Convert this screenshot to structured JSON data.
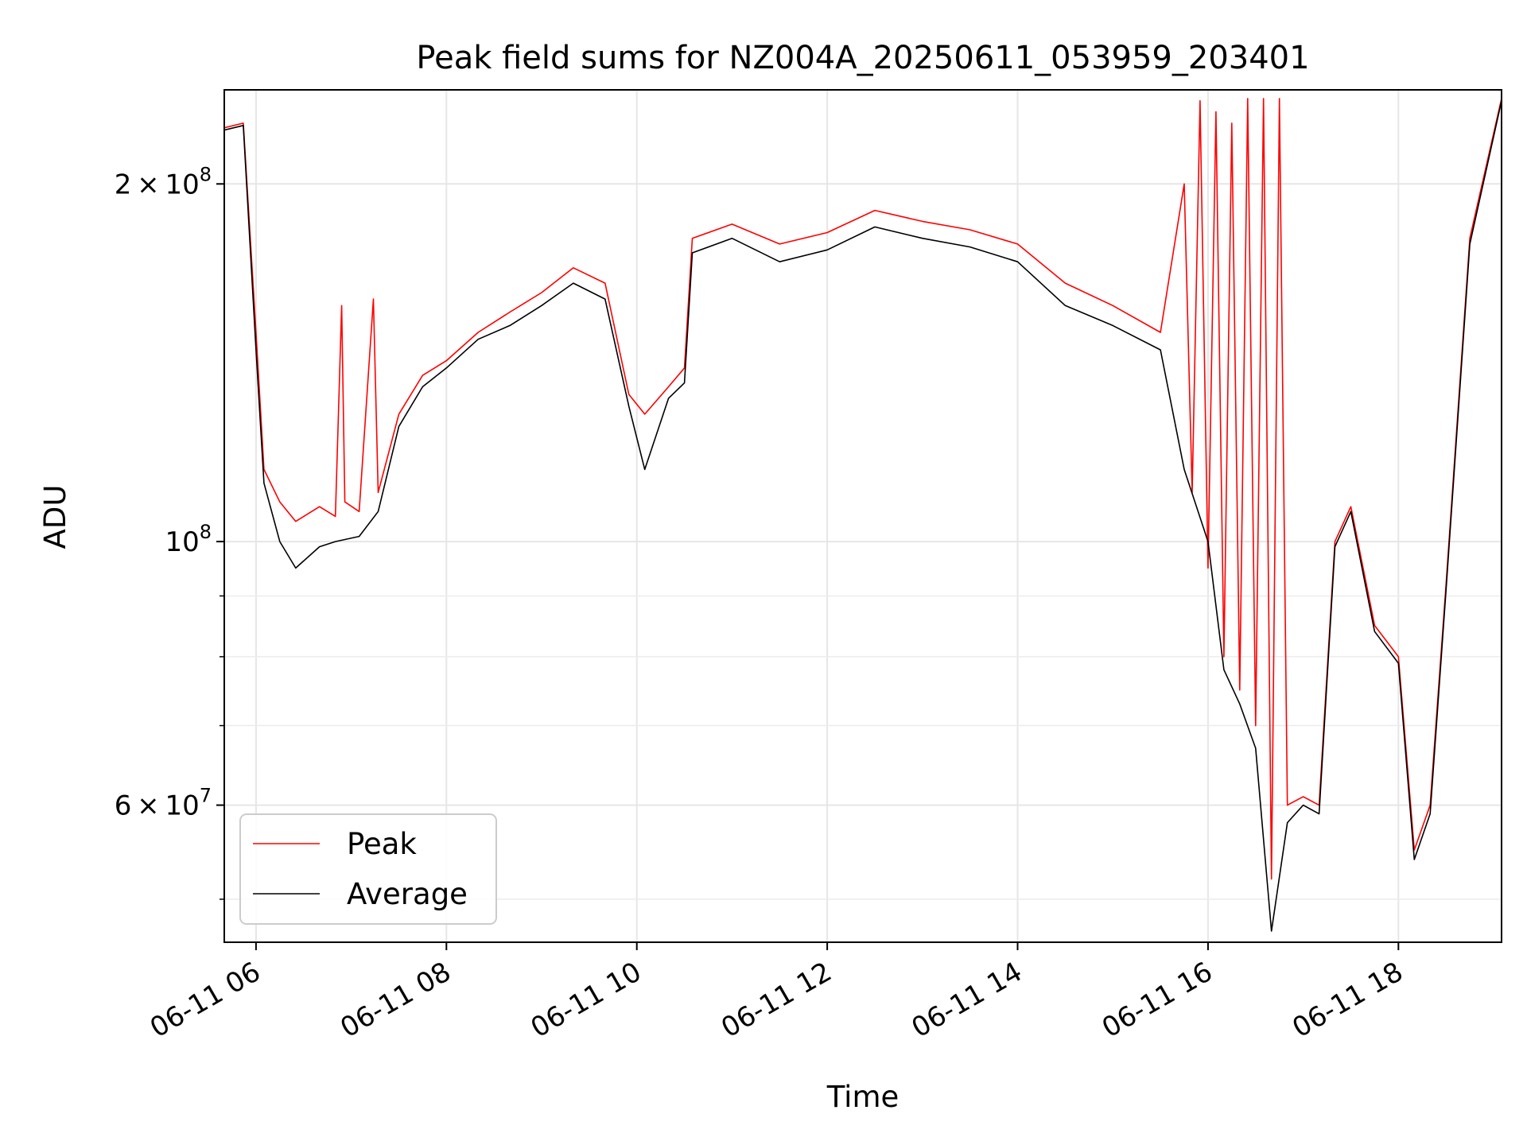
{
  "chart_data": {
    "type": "line",
    "title": "Peak field sums for NZ004A_20250611_053959_203401",
    "xlabel": "Time",
    "ylabel": "ADU",
    "y_scale": "log",
    "grid": true,
    "legend_position": "lower-left",
    "x_time_range": [
      "2025-06-11 05:40",
      "2025-06-11 19:05"
    ],
    "ylim": [
      46000000,
      240000000
    ],
    "x_ticks": [
      {
        "time": "2025-06-11 06:00",
        "label": "06-11 06"
      },
      {
        "time": "2025-06-11 08:00",
        "label": "06-11 08"
      },
      {
        "time": "2025-06-11 10:00",
        "label": "06-11 10"
      },
      {
        "time": "2025-06-11 12:00",
        "label": "06-11 12"
      },
      {
        "time": "2025-06-11 14:00",
        "label": "06-11 14"
      },
      {
        "time": "2025-06-11 16:00",
        "label": "06-11 16"
      },
      {
        "time": "2025-06-11 18:00",
        "label": "06-11 18"
      }
    ],
    "y_major_ticks": [
      {
        "value": 200000000,
        "mantissa": "2",
        "times": "×",
        "base": "10",
        "exp": "8"
      },
      {
        "value": 100000000,
        "mantissa": "",
        "times": "",
        "base": "10",
        "exp": "8"
      },
      {
        "value": 60000000,
        "mantissa": "6",
        "times": "×",
        "base": "10",
        "exp": "7"
      }
    ],
    "y_minor_ticks": [
      50000000,
      70000000,
      80000000,
      90000000
    ],
    "series": [
      {
        "name": "Peak",
        "color": "#ff0000",
        "points": [
          [
            "2025-06-11 05:40",
            223000000
          ],
          [
            "2025-06-11 05:52",
            225000000
          ],
          [
            "2025-06-11 06:00",
            150000000
          ],
          [
            "2025-06-11 06:05",
            115000000
          ],
          [
            "2025-06-11 06:15",
            108000000
          ],
          [
            "2025-06-11 06:25",
            104000000
          ],
          [
            "2025-06-11 06:40",
            107000000
          ],
          [
            "2025-06-11 06:50",
            105000000
          ],
          [
            "2025-06-11 06:54",
            158000000
          ],
          [
            "2025-06-11 06:56",
            108000000
          ],
          [
            "2025-06-11 07:05",
            106000000
          ],
          [
            "2025-06-11 07:14",
            160000000
          ],
          [
            "2025-06-11 07:17",
            110000000
          ],
          [
            "2025-06-11 07:30",
            128000000
          ],
          [
            "2025-06-11 07:45",
            138000000
          ],
          [
            "2025-06-11 08:00",
            142000000
          ],
          [
            "2025-06-11 08:20",
            150000000
          ],
          [
            "2025-06-11 08:40",
            156000000
          ],
          [
            "2025-06-11 09:00",
            162000000
          ],
          [
            "2025-06-11 09:20",
            170000000
          ],
          [
            "2025-06-11 09:40",
            165000000
          ],
          [
            "2025-06-11 09:55",
            133000000
          ],
          [
            "2025-06-11 10:05",
            128000000
          ],
          [
            "2025-06-11 10:20",
            135000000
          ],
          [
            "2025-06-11 10:30",
            140000000
          ],
          [
            "2025-06-11 10:35",
            180000000
          ],
          [
            "2025-06-11 11:00",
            185000000
          ],
          [
            "2025-06-11 11:30",
            178000000
          ],
          [
            "2025-06-11 12:00",
            182000000
          ],
          [
            "2025-06-11 12:30",
            190000000
          ],
          [
            "2025-06-11 13:00",
            186000000
          ],
          [
            "2025-06-11 13:30",
            183000000
          ],
          [
            "2025-06-11 14:00",
            178000000
          ],
          [
            "2025-06-11 14:30",
            165000000
          ],
          [
            "2025-06-11 15:00",
            158000000
          ],
          [
            "2025-06-11 15:30",
            150000000
          ],
          [
            "2025-06-11 15:45",
            200000000
          ],
          [
            "2025-06-11 15:50",
            110000000
          ],
          [
            "2025-06-11 15:55",
            235000000
          ],
          [
            "2025-06-11 16:00",
            95000000
          ],
          [
            "2025-06-11 16:05",
            230000000
          ],
          [
            "2025-06-11 16:10",
            80000000
          ],
          [
            "2025-06-11 16:15",
            225000000
          ],
          [
            "2025-06-11 16:20",
            75000000
          ],
          [
            "2025-06-11 16:25",
            236000000
          ],
          [
            "2025-06-11 16:30",
            70000000
          ],
          [
            "2025-06-11 16:35",
            236000000
          ],
          [
            "2025-06-11 16:40",
            52000000
          ],
          [
            "2025-06-11 16:45",
            236000000
          ],
          [
            "2025-06-11 16:50",
            60000000
          ],
          [
            "2025-06-11 17:00",
            61000000
          ],
          [
            "2025-06-11 17:10",
            60000000
          ],
          [
            "2025-06-11 17:20",
            100000000
          ],
          [
            "2025-06-11 17:30",
            107000000
          ],
          [
            "2025-06-11 17:45",
            85000000
          ],
          [
            "2025-06-11 18:00",
            80000000
          ],
          [
            "2025-06-11 18:10",
            55000000
          ],
          [
            "2025-06-11 18:20",
            60000000
          ],
          [
            "2025-06-11 18:30",
            92000000
          ],
          [
            "2025-06-11 18:45",
            180000000
          ],
          [
            "2025-06-11 19:05",
            236000000
          ]
        ]
      },
      {
        "name": "Average",
        "color": "#000000",
        "points": [
          [
            "2025-06-11 05:40",
            222000000
          ],
          [
            "2025-06-11 05:52",
            224000000
          ],
          [
            "2025-06-11 06:00",
            145000000
          ],
          [
            "2025-06-11 06:05",
            112000000
          ],
          [
            "2025-06-11 06:15",
            100000000
          ],
          [
            "2025-06-11 06:25",
            95000000
          ],
          [
            "2025-06-11 06:40",
            99000000
          ],
          [
            "2025-06-11 06:50",
            100000000
          ],
          [
            "2025-06-11 07:05",
            101000000
          ],
          [
            "2025-06-11 07:17",
            106000000
          ],
          [
            "2025-06-11 07:30",
            125000000
          ],
          [
            "2025-06-11 07:45",
            135000000
          ],
          [
            "2025-06-11 08:00",
            140000000
          ],
          [
            "2025-06-11 08:20",
            148000000
          ],
          [
            "2025-06-11 08:40",
            152000000
          ],
          [
            "2025-06-11 09:00",
            158000000
          ],
          [
            "2025-06-11 09:20",
            165000000
          ],
          [
            "2025-06-11 09:40",
            160000000
          ],
          [
            "2025-06-11 09:55",
            130000000
          ],
          [
            "2025-06-11 10:05",
            115000000
          ],
          [
            "2025-06-11 10:20",
            132000000
          ],
          [
            "2025-06-11 10:30",
            136000000
          ],
          [
            "2025-06-11 10:35",
            175000000
          ],
          [
            "2025-06-11 11:00",
            180000000
          ],
          [
            "2025-06-11 11:30",
            172000000
          ],
          [
            "2025-06-11 12:00",
            176000000
          ],
          [
            "2025-06-11 12:30",
            184000000
          ],
          [
            "2025-06-11 13:00",
            180000000
          ],
          [
            "2025-06-11 13:30",
            177000000
          ],
          [
            "2025-06-11 14:00",
            172000000
          ],
          [
            "2025-06-11 14:30",
            158000000
          ],
          [
            "2025-06-11 15:00",
            152000000
          ],
          [
            "2025-06-11 15:30",
            145000000
          ],
          [
            "2025-06-11 15:45",
            115000000
          ],
          [
            "2025-06-11 16:00",
            100000000
          ],
          [
            "2025-06-11 16:10",
            78000000
          ],
          [
            "2025-06-11 16:20",
            73000000
          ],
          [
            "2025-06-11 16:30",
            67000000
          ],
          [
            "2025-06-11 16:40",
            47000000
          ],
          [
            "2025-06-11 16:50",
            58000000
          ],
          [
            "2025-06-11 17:00",
            60000000
          ],
          [
            "2025-06-11 17:10",
            59000000
          ],
          [
            "2025-06-11 17:20",
            99000000
          ],
          [
            "2025-06-11 17:30",
            106000000
          ],
          [
            "2025-06-11 17:45",
            84000000
          ],
          [
            "2025-06-11 18:00",
            79000000
          ],
          [
            "2025-06-11 18:10",
            54000000
          ],
          [
            "2025-06-11 18:20",
            59000000
          ],
          [
            "2025-06-11 18:30",
            91000000
          ],
          [
            "2025-06-11 18:45",
            178000000
          ],
          [
            "2025-06-11 19:05",
            235000000
          ]
        ]
      }
    ]
  }
}
